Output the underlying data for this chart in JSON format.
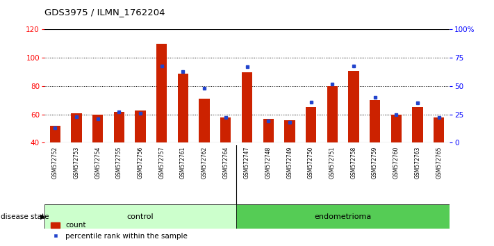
{
  "title": "GDS3975 / ILMN_1762204",
  "samples": [
    "GSM572752",
    "GSM572753",
    "GSM572754",
    "GSM572755",
    "GSM572756",
    "GSM572757",
    "GSM572761",
    "GSM572762",
    "GSM572764",
    "GSM572747",
    "GSM572748",
    "GSM572749",
    "GSM572750",
    "GSM572751",
    "GSM572758",
    "GSM572759",
    "GSM572760",
    "GSM572763",
    "GSM572765"
  ],
  "count_values": [
    52,
    61,
    60,
    62,
    63,
    110,
    89,
    71,
    58,
    90,
    57,
    56,
    65,
    80,
    91,
    70,
    60,
    65,
    58
  ],
  "percentile_values": [
    13,
    23,
    21,
    27,
    26,
    68,
    63,
    48,
    22,
    67,
    19,
    18,
    36,
    52,
    68,
    40,
    25,
    35,
    22
  ],
  "n_control": 9,
  "n_endo": 10,
  "bar_color": "#cc2200",
  "dot_color": "#2244cc",
  "ylim_left": [
    40,
    120
  ],
  "ylim_right": [
    0,
    100
  ],
  "yticks_left": [
    40,
    60,
    80,
    100,
    120
  ],
  "yticks_right": [
    0,
    25,
    50,
    75,
    100
  ],
  "ytick_labels_right": [
    "0",
    "25",
    "50",
    "75",
    "100%"
  ],
  "grid_lines": [
    60,
    80,
    100
  ],
  "control_color": "#ccffcc",
  "endometrioma_color": "#55cc55",
  "sample_bg_color": "#cccccc",
  "bar_width": 0.5,
  "figsize": [
    7.11,
    3.54
  ],
  "dpi": 100
}
